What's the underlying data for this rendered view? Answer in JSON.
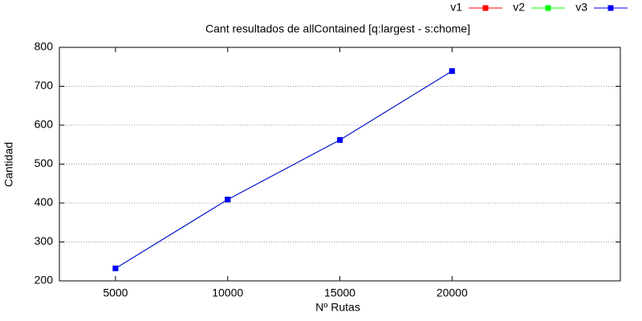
{
  "chart_data": {
    "type": "line",
    "title": "Cant resultados de allContained [q:largest - s:chome]",
    "x_label": "Nº Rutas",
    "y_label": "Cantidad",
    "x": [
      5000,
      10000,
      15000,
      20000
    ],
    "series": [
      {
        "name": "v1",
        "color": "#ff0000",
        "values": [
          232,
          409,
          562,
          739
        ]
      },
      {
        "name": "v2",
        "color": "#00ff00",
        "values": [
          232,
          409,
          562,
          739
        ]
      },
      {
        "name": "v3",
        "color": "#0000ff",
        "values": [
          232,
          409,
          562,
          739
        ]
      }
    ],
    "xlim": [
      2500,
      27500
    ],
    "xticks": [
      5000,
      10000,
      15000,
      20000
    ],
    "ylim": [
      200,
      800
    ],
    "yticks": [
      200,
      300,
      400,
      500,
      600,
      700,
      800
    ],
    "grid": true,
    "legend": "top-right"
  }
}
